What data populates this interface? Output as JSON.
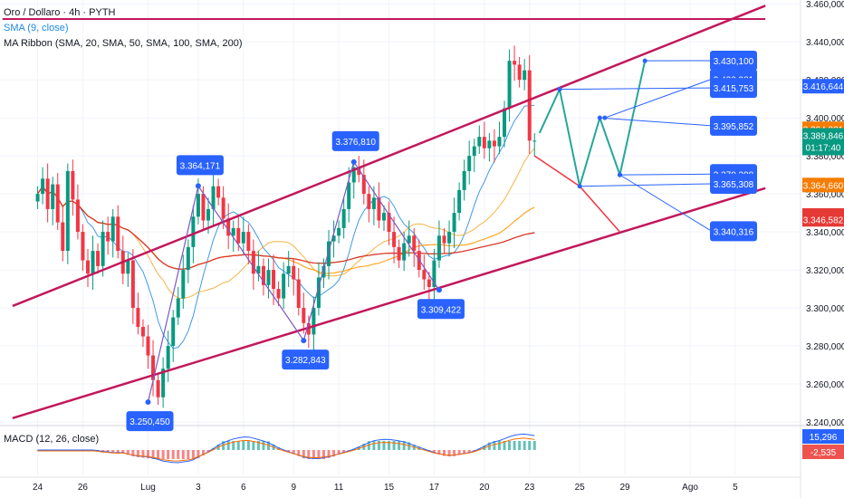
{
  "header": {
    "symbol": "Oro / Dollaro · 4h · PYTH",
    "sma_label": "SMA (9, close)",
    "ribbon_label": "MA Ribbon (SMA, 20, SMA, 50, SMA, 100, SMA, 200)",
    "macd_label": "MACD (12, 26, close)"
  },
  "colors": {
    "up": "#089981",
    "down": "#f23645",
    "channel": "#c2185b",
    "callout": "#2962ff",
    "path_up": "#26a69a",
    "path_down": "#f23645"
  },
  "chart_data": {
    "type": "candlestick",
    "price_axis_ticks": [
      "3.460,000",
      "3.440,000",
      "3.420,000",
      "3.400,000",
      "3.380,000",
      "3.360,000",
      "3.340,000",
      "3.320,000",
      "3.300,000",
      "3.280,000",
      "3.260,000",
      "3.240,000"
    ],
    "price_axis_values": [
      3460,
      3440,
      3420,
      3400,
      3380,
      3360,
      3340,
      3320,
      3300,
      3280,
      3260,
      3240
    ],
    "ylim": [
      3240,
      3462
    ],
    "x_ticks": [
      {
        "label": "24",
        "t": 0
      },
      {
        "label": "26",
        "t": 9
      },
      {
        "label": "Lug",
        "t": 22
      },
      {
        "label": "3",
        "t": 32
      },
      {
        "label": "6",
        "t": 41
      },
      {
        "label": "9",
        "t": 51
      },
      {
        "label": "11",
        "t": 60
      },
      {
        "label": "15",
        "t": 70
      },
      {
        "label": "17",
        "t": 79
      },
      {
        "label": "20",
        "t": 89
      },
      {
        "label": "23",
        "t": 98
      },
      {
        "label": "25",
        "t": 108
      },
      {
        "label": "29",
        "t": 117
      },
      {
        "label": "Ago",
        "t": 130
      },
      {
        "label": "5",
        "t": 139
      }
    ],
    "xlim": [
      -7.5,
      152
    ],
    "closes": [
      3360,
      3368,
      3352,
      3365,
      3345,
      3330,
      3372,
      3357,
      3340,
      3325,
      3318,
      3330,
      3322,
      3340,
      3335,
      3348,
      3330,
      3318,
      3325,
      3300,
      3290,
      3285,
      3275,
      3262,
      3253,
      3268,
      3280,
      3295,
      3305,
      3320,
      3332,
      3348,
      3360,
      3346,
      3352,
      3364,
      3358,
      3347,
      3338,
      3342,
      3334,
      3340,
      3330,
      3318,
      3322,
      3312,
      3320,
      3310,
      3305,
      3318,
      3322,
      3315,
      3300,
      3292,
      3286,
      3300,
      3316,
      3322,
      3335,
      3338,
      3342,
      3352,
      3366,
      3374,
      3370,
      3360,
      3352,
      3358,
      3346,
      3350,
      3340,
      3332,
      3325,
      3334,
      3338,
      3330,
      3320,
      3315,
      3311,
      3325,
      3338,
      3334,
      3340,
      3350,
      3362,
      3372,
      3380,
      3385,
      3390,
      3384,
      3388,
      3385,
      3390,
      3405,
      3430,
      3428,
      3420,
      3425,
      3388,
      3388
    ],
    "current_price": "3.389,846",
    "countdown": "01:17:40",
    "projection_levels": [
      {
        "label": "3.430,100",
        "price": 3430.1
      },
      {
        "label": "3.420,381",
        "price": 3420.381
      },
      {
        "label": "3.415,753",
        "price": 3415.753
      },
      {
        "label": "3.395,852",
        "price": 3395.852
      },
      {
        "label": "3.370,398",
        "price": 3370.398
      },
      {
        "label": "3.365,308",
        "price": 3365.308
      },
      {
        "label": "3.340,316",
        "price": 3340.316
      }
    ],
    "pivot_labels": [
      {
        "label": "3.364,171",
        "price": 3364.171,
        "t": 32
      },
      {
        "label": "3.376,810",
        "price": 3376.81,
        "t": 63
      },
      {
        "label": "3.309,422",
        "price": 3309.422,
        "t": 80
      },
      {
        "label": "3.282,843",
        "price": 3282.843,
        "t": 53
      },
      {
        "label": "3.250,450",
        "price": 3250.45,
        "t": 22
      }
    ],
    "axis_badges": [
      {
        "label": "3.416,644",
        "price": 3416.644,
        "color": "#2962ff"
      },
      {
        "label": "3.394,231",
        "price": 3394.231,
        "color": "#f57c00"
      },
      {
        "label": "3.364,660",
        "price": 3364.66,
        "color": "#f57c00"
      },
      {
        "label": "3.348,642",
        "price": 3348.642,
        "color": "#e53935"
      },
      {
        "label": "3.346,582",
        "price": 3346.582,
        "color": "#e53935"
      }
    ],
    "macd": {
      "value_1": "15,296",
      "value_2": "-2,535"
    }
  }
}
